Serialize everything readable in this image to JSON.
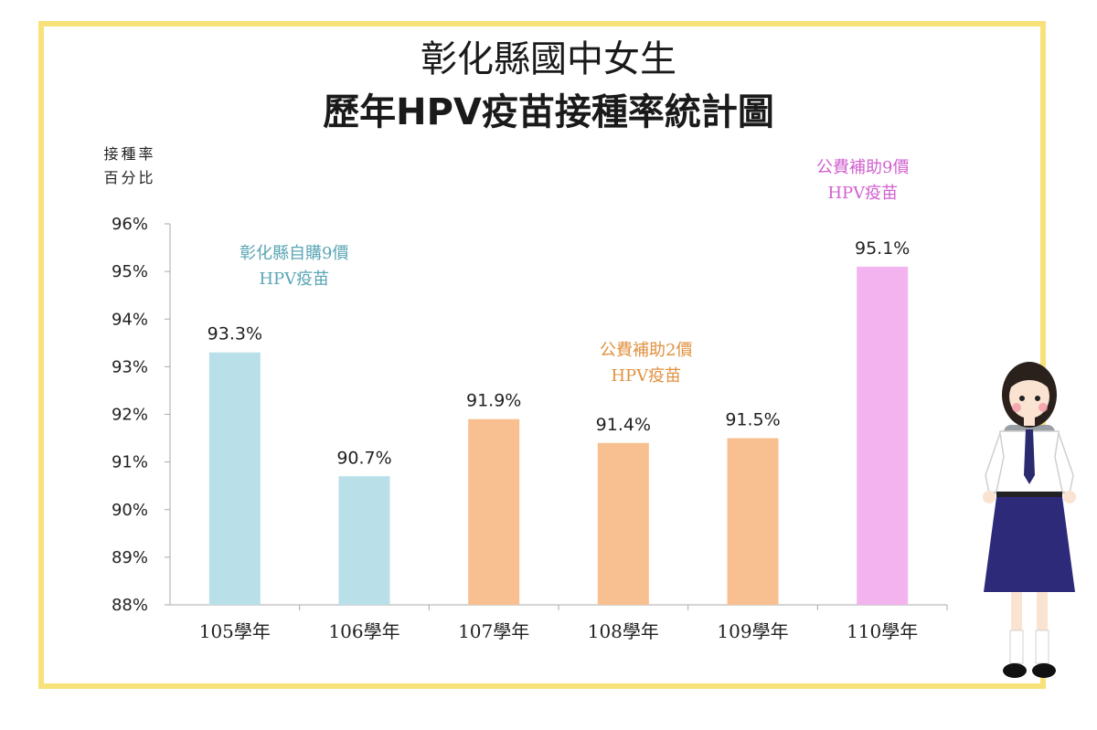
{
  "title": {
    "line1": "彰化縣國中女生",
    "line2": "歷年HPV疫苗接種率統計圖"
  },
  "chart_data": {
    "type": "bar",
    "categories": [
      "105學年",
      "106學年",
      "107學年",
      "108學年",
      "109學年",
      "110學年"
    ],
    "values": [
      93.3,
      90.7,
      91.9,
      91.4,
      91.5,
      95.1
    ],
    "data_labels": [
      "93.3%",
      "90.7%",
      "91.9%",
      "91.4%",
      "91.5%",
      "95.1%"
    ],
    "bar_colors": [
      "#b9dfe8",
      "#b9dfe8",
      "#f8c090",
      "#f8c090",
      "#f8c090",
      "#f3b3ee"
    ],
    "ylabel": [
      "接種率",
      "百分比"
    ],
    "ylim": [
      88,
      96
    ],
    "yticks": [
      "88%",
      "89%",
      "90%",
      "91%",
      "92%",
      "93%",
      "94%",
      "95%",
      "96%"
    ],
    "grid": false
  },
  "annotations": [
    {
      "lines": [
        "彰化縣自購9價",
        "HPV疫苗"
      ],
      "color": "#5aa5b5"
    },
    {
      "lines": [
        "公費補助2價",
        "HPV疫苗"
      ],
      "color": "#e0913f"
    },
    {
      "lines": [
        "公費補助9價",
        "HPV疫苗"
      ],
      "color": "#d25fd0"
    }
  ],
  "colors": {
    "frame": "#f7e27a",
    "axis": "#aaaaaa"
  }
}
